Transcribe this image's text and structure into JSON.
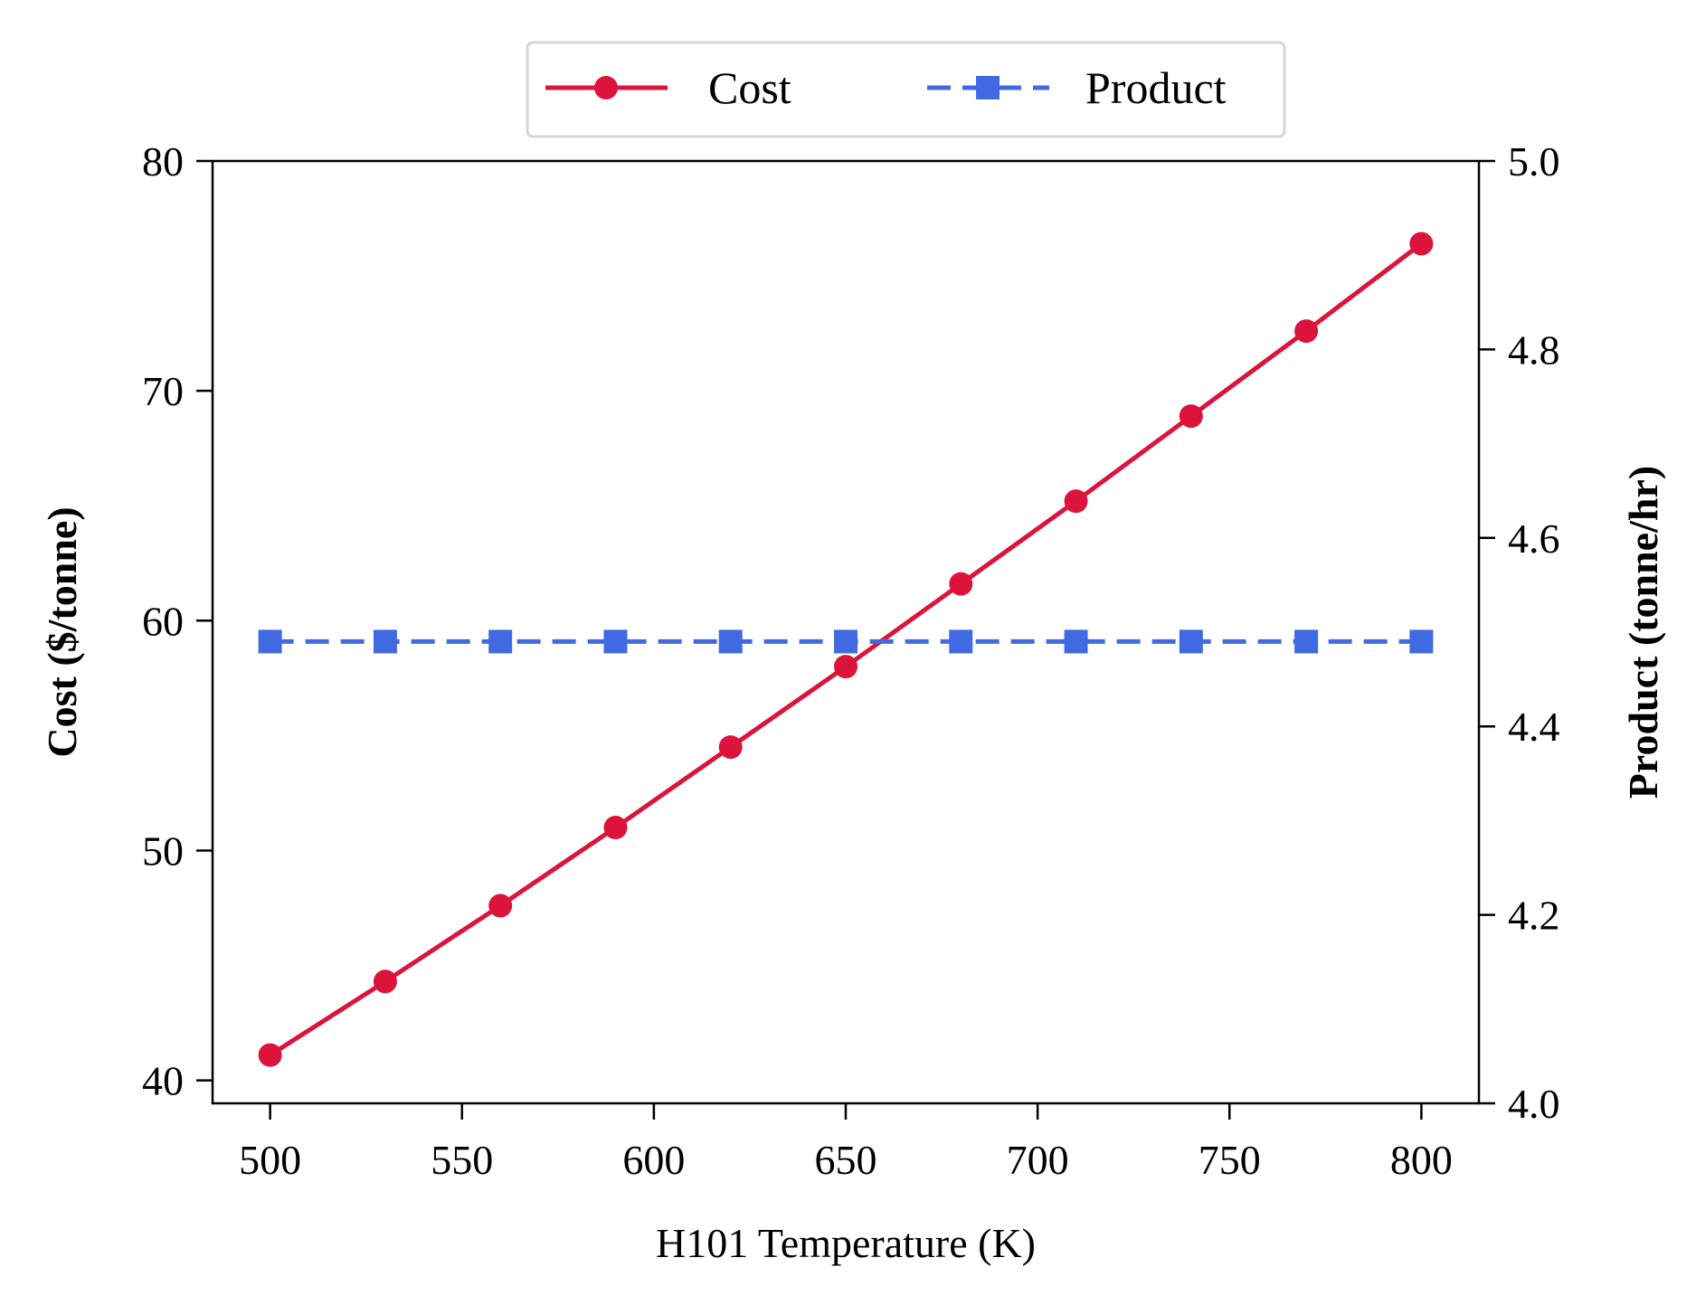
{
  "chart_data": {
    "type": "line",
    "xlabel": "H101 Temperature (K)",
    "ylabel_left": "Cost ($/tonne)",
    "ylabel_right": "Product (tonne/hr)",
    "x": [
      500,
      530,
      560,
      590,
      620,
      650,
      680,
      710,
      740,
      770,
      800
    ],
    "xlim": [
      485,
      815
    ],
    "xticks": [
      500,
      550,
      600,
      650,
      700,
      750,
      800
    ],
    "ylim_left": [
      39,
      80
    ],
    "yticks_left": [
      40,
      50,
      60,
      70,
      80
    ],
    "ylim_right": [
      4.0,
      5.0
    ],
    "yticks_right": [
      "4.0",
      "4.2",
      "4.4",
      "4.6",
      "4.8",
      "5.0"
    ],
    "legend_position": "top-center, above plot",
    "grid": false,
    "series": [
      {
        "name": "Cost",
        "axis": "left",
        "color": "#dc143c",
        "line_style": "solid",
        "marker": "circle",
        "values": [
          41.1,
          44.3,
          47.6,
          51.0,
          54.5,
          58.0,
          61.6,
          65.2,
          68.9,
          72.6,
          76.4
        ]
      },
      {
        "name": "Product",
        "axis": "right",
        "color": "#4169e1",
        "line_style": "dashed",
        "marker": "square",
        "values": [
          4.49,
          4.49,
          4.49,
          4.49,
          4.49,
          4.49,
          4.49,
          4.49,
          4.49,
          4.49,
          4.49
        ]
      }
    ]
  }
}
